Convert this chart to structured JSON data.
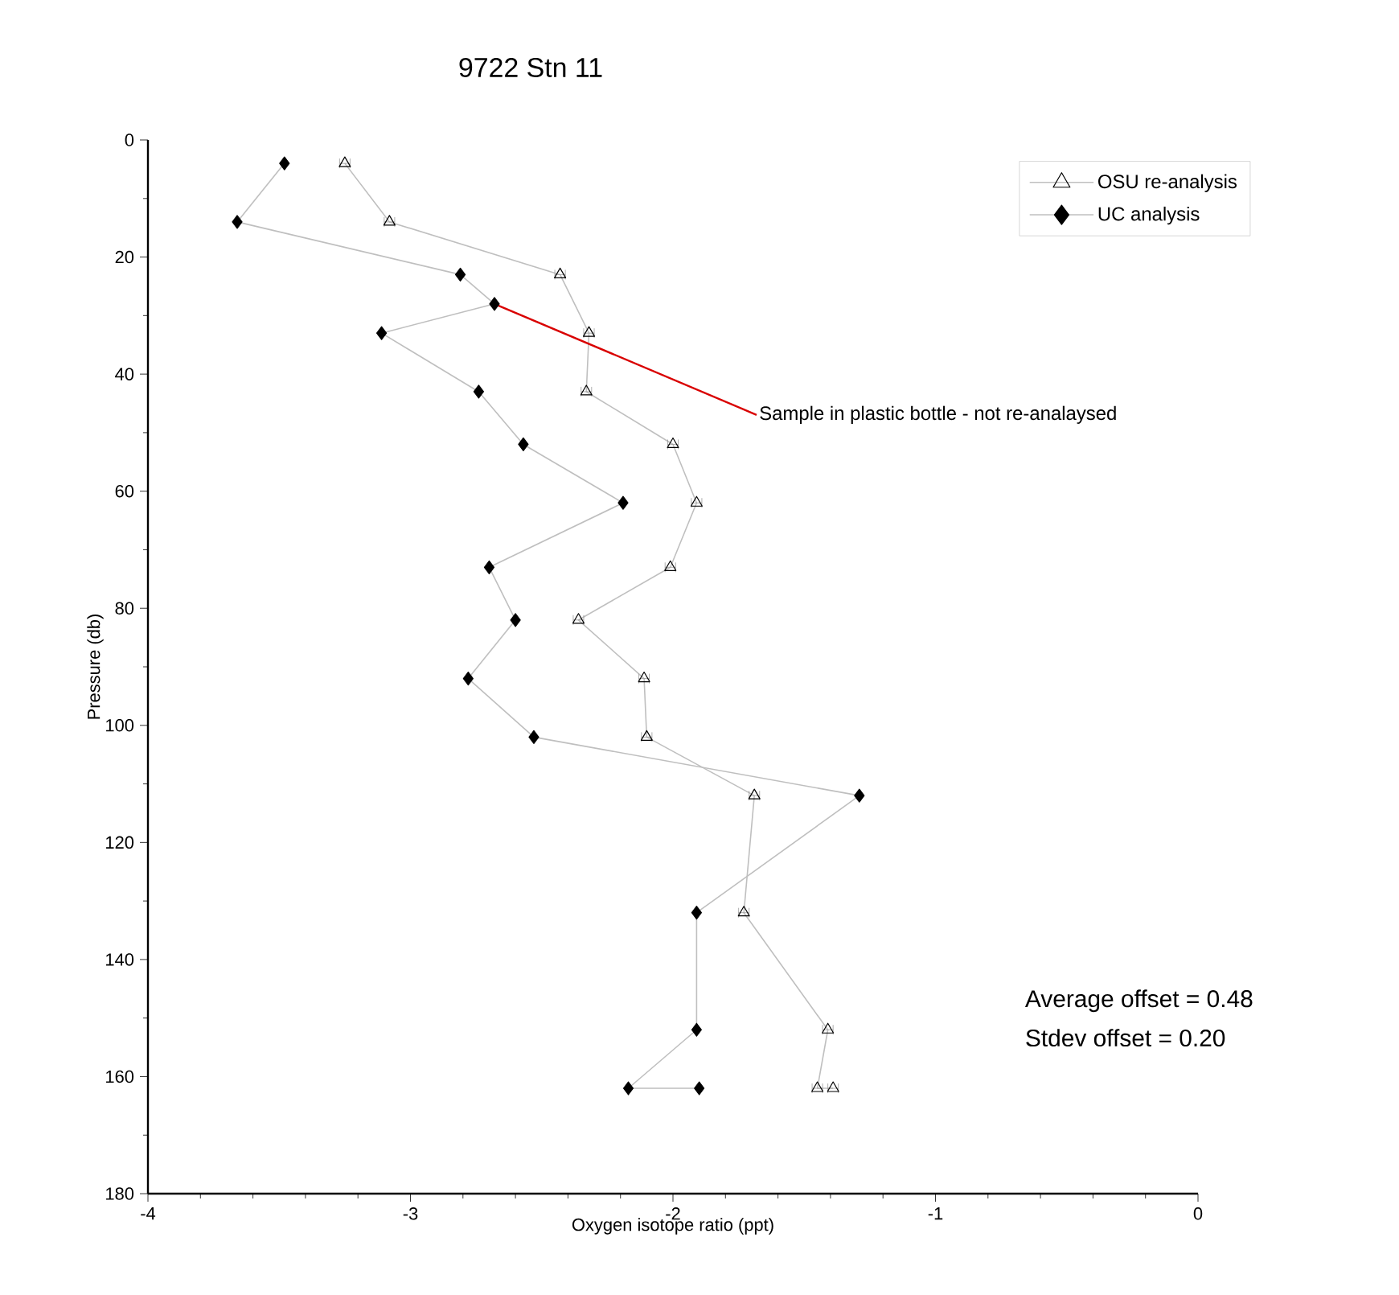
{
  "chart_data": {
    "type": "line",
    "title": "9722 Stn 11",
    "xlabel": "Oxygen isotope ratio (ppt)",
    "ylabel": "Pressure (db)",
    "xlim": [
      -4,
      0
    ],
    "xticks": [
      -4,
      -3,
      -2,
      -1,
      0
    ],
    "ylim": [
      180,
      0
    ],
    "yticks": [
      0,
      20,
      40,
      60,
      80,
      100,
      120,
      140,
      160,
      180
    ],
    "grid": false,
    "legend": "top right",
    "line_style": "solid",
    "series": [
      {
        "name": "OSU re-analysis",
        "color": "#000000",
        "marker": "triangle",
        "x": [
          -3.25,
          -3.08,
          -2.43,
          -2.32,
          -2.33,
          -2.0,
          -1.91,
          -2.01,
          -2.36,
          -2.11,
          -2.1,
          -1.69,
          -1.73,
          -1.41,
          -1.45,
          -1.39
        ],
        "values": [
          4,
          14,
          23,
          33,
          43,
          52,
          62,
          73,
          82,
          92,
          102,
          112,
          132,
          152,
          162,
          162
        ],
        "xerrors": [
          0.02,
          0.02,
          0.02,
          0.02,
          0.02,
          0.02,
          0.02,
          0.02,
          0.02,
          0.02,
          0.02,
          0.02,
          0.02,
          0.02,
          0.02,
          0.02
        ]
      },
      {
        "name": "UC analysis",
        "color": "#000000",
        "marker": "diamond",
        "x": [
          -3.48,
          -3.66,
          -2.81,
          -2.68,
          -3.11,
          -2.74,
          -2.57,
          -2.19,
          -2.7,
          -2.6,
          -2.78,
          -2.53,
          -1.29,
          -1.91,
          -1.91,
          -2.17,
          -1.9
        ],
        "values": [
          4,
          14,
          23,
          28,
          33,
          43,
          52,
          62,
          73,
          82,
          92,
          102,
          112,
          132,
          152,
          162,
          162
        ]
      }
    ],
    "annotations": [
      {
        "text": "Sample in plastic bottle - not re-analaysed",
        "x": -2.68,
        "y": 28
      },
      "Average offset = 0.48",
      "Stdev offset = 0.20"
    ]
  }
}
